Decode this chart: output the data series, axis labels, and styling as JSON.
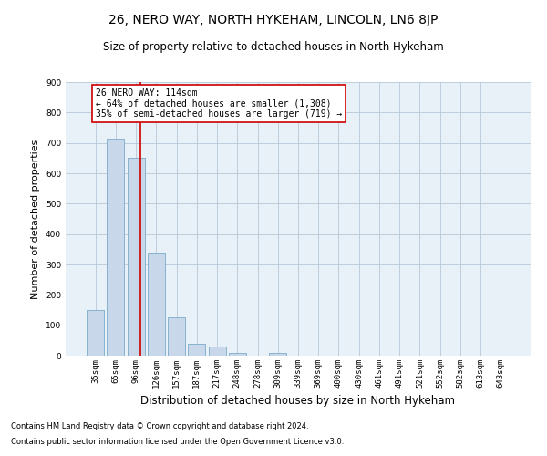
{
  "title": "26, NERO WAY, NORTH HYKEHAM, LINCOLN, LN6 8JP",
  "subtitle": "Size of property relative to detached houses in North Hykeham",
  "xlabel": "Distribution of detached houses by size in North Hykeham",
  "ylabel": "Number of detached properties",
  "footnote1": "Contains HM Land Registry data © Crown copyright and database right 2024.",
  "footnote2": "Contains public sector information licensed under the Open Government Licence v3.0.",
  "annotation_line1": "26 NERO WAY: 114sqm",
  "annotation_line2": "← 64% of detached houses are smaller (1,308)",
  "annotation_line3": "35% of semi-detached houses are larger (719) →",
  "bar_color": "#c8d8ea",
  "bar_edge_color": "#7aaac8",
  "red_line_color": "#cc0000",
  "red_line_x": 2.2,
  "categories": [
    "35sqm",
    "65sqm",
    "96sqm",
    "126sqm",
    "157sqm",
    "187sqm",
    "217sqm",
    "248sqm",
    "278sqm",
    "309sqm",
    "339sqm",
    "369sqm",
    "400sqm",
    "430sqm",
    "461sqm",
    "491sqm",
    "521sqm",
    "552sqm",
    "582sqm",
    "613sqm",
    "643sqm"
  ],
  "values": [
    150,
    715,
    650,
    340,
    125,
    40,
    30,
    10,
    0,
    10,
    0,
    0,
    0,
    0,
    0,
    0,
    0,
    0,
    0,
    0,
    0
  ],
  "ylim": [
    0,
    900
  ],
  "yticks": [
    0,
    100,
    200,
    300,
    400,
    500,
    600,
    700,
    800,
    900
  ],
  "grid_color": "#b8c8d8",
  "background_color": "#e8f0f8",
  "figure_bg": "#ffffff",
  "title_fontsize": 10,
  "subtitle_fontsize": 8.5,
  "ylabel_fontsize": 8,
  "xlabel_fontsize": 8.5,
  "tick_fontsize": 6.5,
  "footnote_fontsize": 6,
  "ann_fontsize": 7
}
